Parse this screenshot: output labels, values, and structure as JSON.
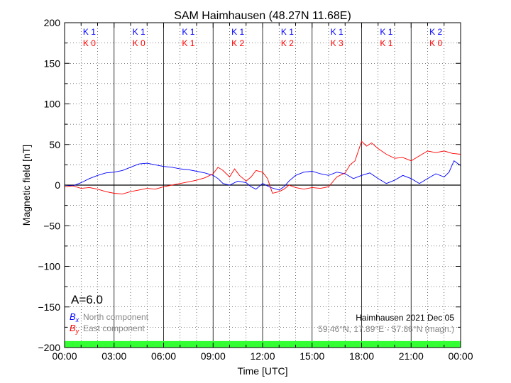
{
  "chart_data": {
    "type": "line",
    "title": "SAM Haimhausen (48.27N 11.68E)",
    "xlabel": "Time [UTC]",
    "ylabel": "Magnetic field [nT]",
    "xlim": [
      0,
      24
    ],
    "ylim": [
      -200,
      200
    ],
    "x_ticks": [
      0,
      3,
      6,
      9,
      12,
      15,
      18,
      21,
      24
    ],
    "x_tick_labels": [
      "00:00",
      "03:00",
      "06:00",
      "09:00",
      "12:00",
      "15:00",
      "18:00",
      "21:00",
      "00:00"
    ],
    "y_ticks": [
      -200,
      -150,
      -100,
      -50,
      0,
      50,
      100,
      150,
      200
    ],
    "y_tick_labels": [
      "−200",
      "−150",
      "−100",
      "−50",
      "0",
      "50",
      "100",
      "150",
      "200"
    ],
    "grid": true,
    "k_index_blocks": [
      {
        "k_x": "K 1",
        "k_y": "K 0"
      },
      {
        "k_x": "K 1",
        "k_y": "K 0"
      },
      {
        "k_x": "K 1",
        "k_y": "K 1"
      },
      {
        "k_x": "K 1",
        "k_y": "K 2"
      },
      {
        "k_x": "K 1",
        "k_y": "K 2"
      },
      {
        "k_x": "K 1",
        "k_y": "K 3"
      },
      {
        "k_x": "K 1",
        "k_y": "K 1"
      },
      {
        "k_x": "K 2",
        "k_y": "K 0"
      }
    ],
    "a_index": "A=6.0",
    "legend": {
      "placement": "bottom-left",
      "items": [
        {
          "symbol": "B",
          "sub": "x",
          "label": "North component",
          "color": "#0000ff"
        },
        {
          "symbol": "B",
          "sub": "y",
          "label": "East component",
          "color": "#ff0000"
        }
      ]
    },
    "info": {
      "station_date": "Haimhausen 2021 Dec 05",
      "coords": "59.46°N, 17.89°E - 57.86°N (magn.)"
    },
    "status_bar_color": "#33ff33",
    "series": [
      {
        "name": "North component",
        "color": "#0000ff",
        "x": [
          0,
          0.5,
          1,
          1.5,
          2,
          2.5,
          3,
          3.5,
          4,
          4.5,
          5,
          5.5,
          6,
          6.5,
          7,
          7.5,
          8,
          8.5,
          9,
          9.3,
          9.6,
          10,
          10.5,
          11,
          11.3,
          11.6,
          12,
          12.5,
          13,
          13.3,
          13.6,
          14,
          14.5,
          15,
          15.5,
          16,
          16.5,
          17,
          17.5,
          18,
          18.5,
          19,
          19.5,
          20,
          20.5,
          21,
          21.5,
          22,
          22.5,
          23,
          23.3,
          23.6,
          24
        ],
        "y": [
          0,
          -1,
          3,
          8,
          12,
          15,
          16,
          18,
          22,
          26,
          27,
          25,
          23,
          22,
          20,
          19,
          17,
          15,
          12,
          8,
          2,
          0,
          5,
          3,
          -2,
          -5,
          2,
          -3,
          -6,
          -2,
          5,
          12,
          16,
          17,
          14,
          12,
          16,
          14,
          8,
          12,
          15,
          8,
          2,
          6,
          12,
          8,
          2,
          8,
          14,
          10,
          16,
          30,
          24
        ]
      },
      {
        "name": "East component",
        "color": "#ff0000",
        "x": [
          0,
          0.5,
          1,
          1.5,
          2,
          2.5,
          3,
          3.5,
          4,
          4.5,
          5,
          5.5,
          6,
          6.5,
          7,
          7.5,
          8,
          8.5,
          9,
          9.3,
          9.6,
          10,
          10.3,
          10.6,
          11,
          11.3,
          11.6,
          12,
          12.3,
          12.6,
          13,
          13.3,
          13.6,
          14,
          14.5,
          15,
          15.5,
          16,
          16.5,
          17,
          17.3,
          17.6,
          18,
          18.3,
          18.6,
          19,
          19.5,
          20,
          20.5,
          21,
          21.5,
          22,
          22.5,
          23,
          23.5,
          24
        ],
        "y": [
          -2,
          -1,
          -4,
          -3,
          -5,
          -8,
          -10,
          -11,
          -8,
          -6,
          -4,
          -5,
          -2,
          0,
          2,
          4,
          6,
          9,
          14,
          22,
          18,
          10,
          20,
          12,
          5,
          10,
          18,
          16,
          8,
          -10,
          -8,
          -5,
          0,
          -3,
          -5,
          -3,
          -4,
          -2,
          10,
          15,
          25,
          30,
          54,
          48,
          52,
          45,
          38,
          33,
          34,
          30,
          36,
          42,
          40,
          42,
          39,
          38
        ]
      }
    ]
  }
}
